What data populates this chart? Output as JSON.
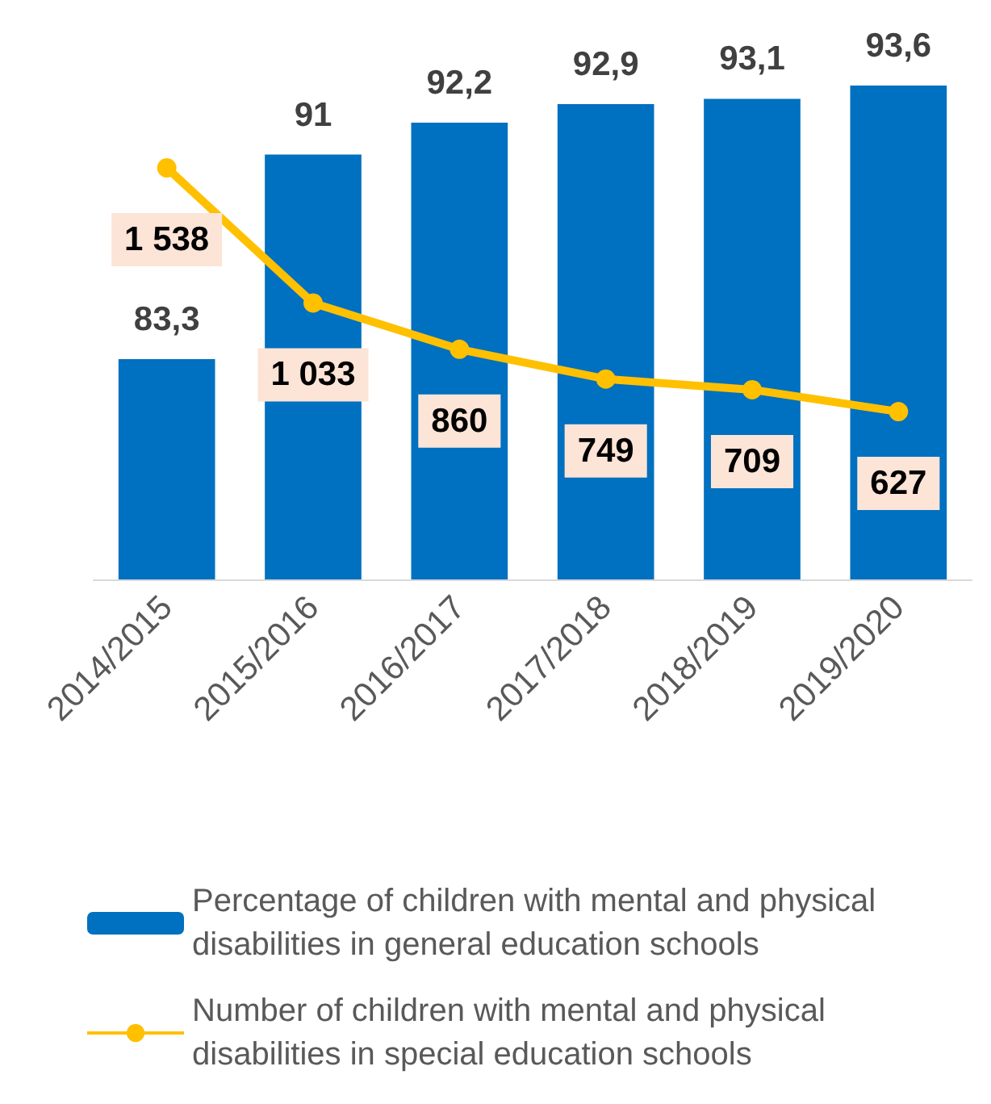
{
  "chart_data": {
    "type": "bar",
    "categories": [
      "2014/2015",
      "2015/2016",
      "2016/2017",
      "2017/2018",
      "2018/2019",
      "2019/2020"
    ],
    "series": [
      {
        "name": "Percentage of children with mental and physical disabilities in general education schools",
        "color": "#0070c0",
        "values": [
          83.3,
          91,
          92.2,
          92.9,
          93.1,
          93.6
        ],
        "value_labels": [
          "83,3",
          "91",
          "92,2",
          "92,9",
          "93,1",
          "93,6"
        ]
      },
      {
        "name": "Number of children with mental and physical disabilities in special education schools",
        "type": "line",
        "axis": "y2",
        "color": "#ffc000",
        "values": [
          1538,
          1033,
          860,
          749,
          709,
          627
        ],
        "value_labels": [
          "1 538",
          "1 033",
          "860",
          "749",
          "709",
          "627"
        ]
      }
    ],
    "ylim": [
      75,
      93.6
    ],
    "tick_labels": "x",
    "legend": "bottom",
    "marker": "circle",
    "grid": false
  }
}
